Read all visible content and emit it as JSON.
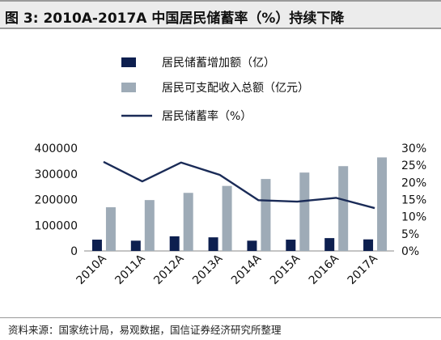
{
  "header": {
    "title": "图 3:  2010A-2017A 中国居民储蓄率（%）持续下降"
  },
  "footer": {
    "source": "资料来源：国家统计局，易观数据，国信证券经济研究所整理"
  },
  "colors": {
    "savings_bar": "#0d1f4f",
    "income_bar": "#9eabb7",
    "rate_line": "#1a2b57",
    "title_bg": "#ececec",
    "rule": "#9a9a9a"
  },
  "chart_data": {
    "type": "bar",
    "categories": [
      "2010A",
      "2011A",
      "2012A",
      "2013A",
      "2014A",
      "2015A",
      "2016A",
      "2017A"
    ],
    "series": [
      {
        "name": "居民储蓄增加额（亿）",
        "type": "bar",
        "axis": "left",
        "values": [
          44000,
          40000,
          57000,
          53000,
          40000,
          44000,
          50000,
          45000
        ]
      },
      {
        "name": "居民可支配收入总额（亿元）",
        "type": "bar",
        "axis": "left",
        "values": [
          170000,
          198000,
          226000,
          253000,
          280000,
          305000,
          330000,
          364000
        ]
      },
      {
        "name": "居民储蓄率（%）",
        "type": "line",
        "axis": "right",
        "values": [
          26,
          20.3,
          25.8,
          22.2,
          14.8,
          14.4,
          15.5,
          12.5
        ]
      }
    ],
    "yleft": {
      "ticks": [
        "0",
        "100000",
        "200000",
        "300000",
        "400000"
      ],
      "lim": [
        0,
        400000
      ]
    },
    "yright": {
      "ticks": [
        "0%",
        "5%",
        "10%",
        "15%",
        "20%",
        "25%",
        "30%"
      ],
      "lim": [
        0,
        30
      ]
    },
    "legend_position": "top-left"
  }
}
